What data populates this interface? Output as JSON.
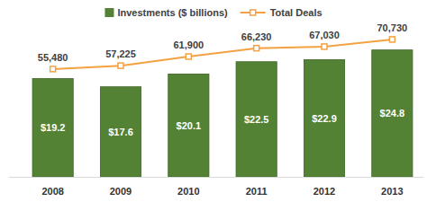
{
  "chart_data": {
    "type": "bar",
    "categories": [
      "2008",
      "2009",
      "2010",
      "2011",
      "2012",
      "2013"
    ],
    "series": [
      {
        "name": "Investments ($ billions)",
        "type": "bar",
        "color": "#548235",
        "values": [
          19.2,
          17.6,
          20.1,
          22.5,
          22.9,
          24.8
        ],
        "value_labels": [
          "$19.2",
          "$17.6",
          "$20.1",
          "$22.5",
          "$22.9",
          "$24.8"
        ]
      },
      {
        "name": "Total Deals",
        "type": "line",
        "axis": "y2",
        "color": "#f4a142",
        "marker": "square",
        "values": [
          55480,
          57225,
          61900,
          66230,
          67030,
          70730
        ],
        "value_labels": [
          "55,480",
          "57,225",
          "61,900",
          "66,230",
          "67,030",
          "70,730"
        ]
      }
    ],
    "ylim": [
      0,
      30
    ],
    "y2lim": [
      0,
      79000
    ],
    "data_labels": true,
    "tick_labels": false,
    "grid": false,
    "legend": "top"
  }
}
